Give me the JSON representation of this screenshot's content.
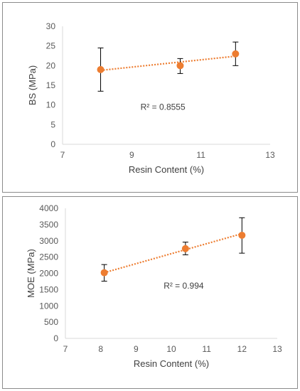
{
  "chart_data": [
    {
      "type": "scatter",
      "xlabel": "Resin Content (%)",
      "ylabel": "BS (MPa)",
      "xlim": [
        7,
        13
      ],
      "ylim": [
        0,
        30
      ],
      "xticks": [
        7,
        9,
        11,
        13
      ],
      "yticks": [
        0,
        5,
        10,
        15,
        20,
        25,
        30
      ],
      "grid": false,
      "series": [
        {
          "x": [
            8.1,
            10.4,
            12.0
          ],
          "y": [
            19.0,
            20.0,
            23.0
          ],
          "err_low": [
            13.5,
            18.0,
            20.0
          ],
          "err_high": [
            24.5,
            21.8,
            26.0
          ]
        }
      ],
      "trendline": {
        "type": "linear",
        "x": [
          8.1,
          12.0
        ],
        "y": [
          18.8,
          22.4
        ]
      },
      "annotation": "R² = 0.8555",
      "annotation_at": [
        9.9,
        8.8
      ],
      "colors": {
        "marker": "#ed7d31",
        "trendline": "#ed7d31",
        "errorbar": "#000000",
        "axis": "#d9d9d9"
      }
    },
    {
      "type": "scatter",
      "xlabel": "Resin Content (%)",
      "ylabel": "MOE (MPa)",
      "xlim": [
        7,
        13
      ],
      "ylim": [
        0,
        4000
      ],
      "xticks": [
        7,
        8,
        9,
        10,
        11,
        12,
        13
      ],
      "yticks": [
        0,
        500,
        1000,
        1500,
        2000,
        2500,
        3000,
        3500,
        4000
      ],
      "grid": false,
      "series": [
        {
          "x": [
            8.1,
            10.4,
            12.0
          ],
          "y": [
            2020,
            2760,
            3170
          ],
          "err_low": [
            1760,
            2570,
            2620
          ],
          "err_high": [
            2270,
            2960,
            3710
          ]
        }
      ],
      "trendline": {
        "type": "linear",
        "x": [
          8.1,
          12.0
        ],
        "y": [
          2020,
          3220
        ]
      },
      "annotation": "R² = 0.994",
      "annotation_at": [
        10.35,
        1530
      ],
      "colors": {
        "marker": "#ed7d31",
        "trendline": "#ed7d31",
        "errorbar": "#000000",
        "axis": "#d9d9d9"
      }
    }
  ]
}
